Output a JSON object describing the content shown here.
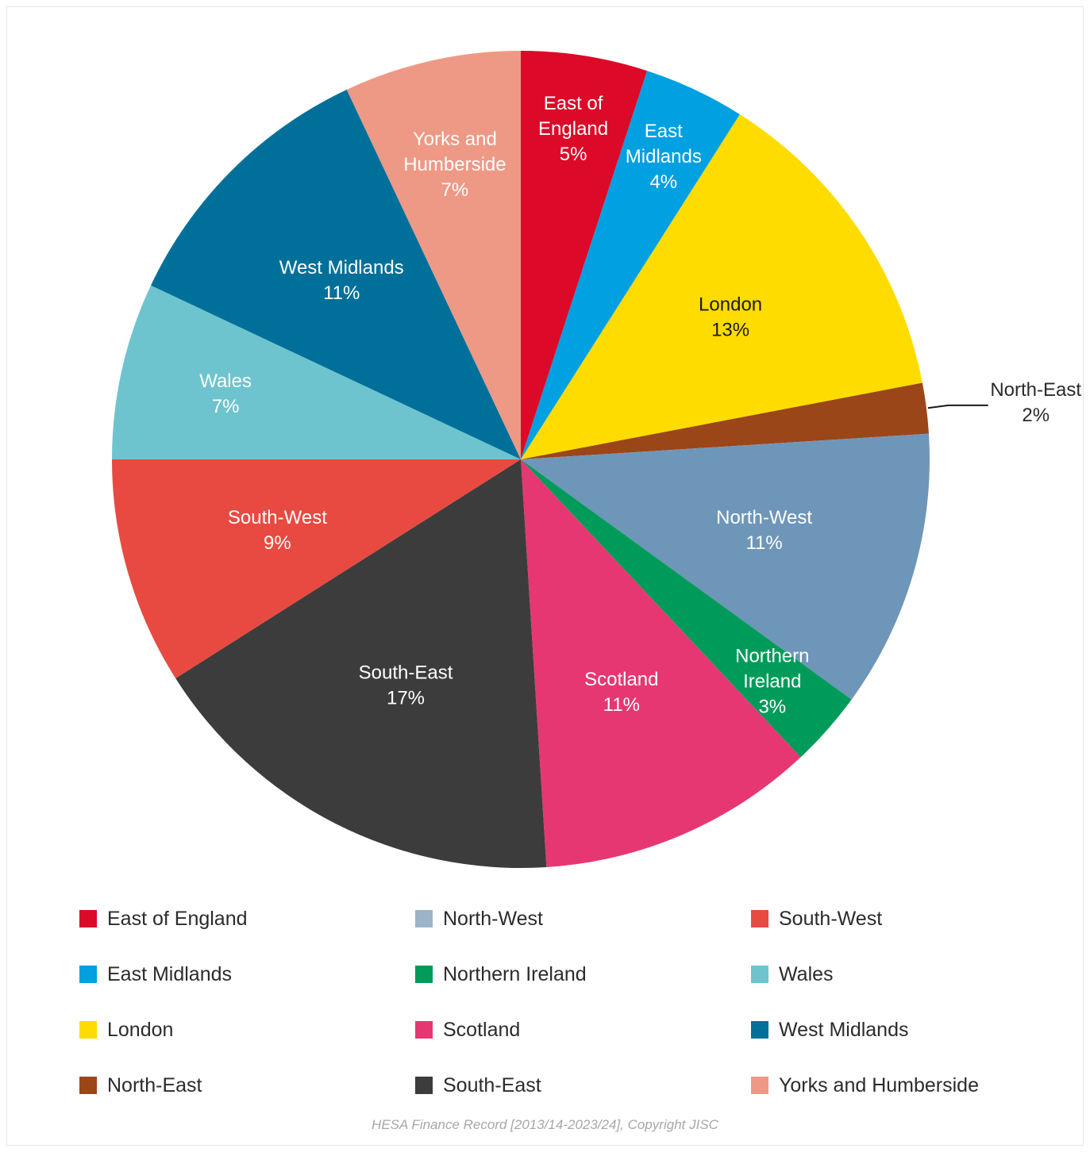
{
  "chart_data": {
    "type": "pie",
    "categories": [
      "East of England",
      "East Midlands",
      "London",
      "North-East",
      "North-West",
      "Northern Ireland",
      "Scotland",
      "South-East",
      "South-West",
      "Wales",
      "West Midlands",
      "Yorks and Humberside"
    ],
    "values": [
      5,
      4,
      13,
      2,
      11,
      3,
      11,
      17,
      9,
      7,
      11,
      7
    ],
    "colors": [
      "#dc0a28",
      "#00a0e1",
      "#ffdc00",
      "#9b4618",
      "#6e96b9",
      "#009b5a",
      "#e63773",
      "#3c3c3c",
      "#e84a41",
      "#6ec4ce",
      "#00709a",
      "#ee9985"
    ],
    "slices": [
      {
        "label": [
          "East of",
          "England",
          "5%"
        ],
        "value": 5,
        "color": "#dc0a28",
        "text_color": "#ffffff"
      },
      {
        "label": [
          "East",
          "Midlands",
          "4%"
        ],
        "value": 4,
        "color": "#00a0e1",
        "text_color": "#ffffff"
      },
      {
        "label": [
          "London",
          "13%"
        ],
        "value": 13,
        "color": "#ffdc00",
        "text_color": "#1a1a1a"
      },
      {
        "label": [
          "North-East",
          "2%"
        ],
        "value": 2,
        "color": "#9b4618",
        "text_color": "#2b2b2b"
      },
      {
        "label": [
          "North-West",
          "11%"
        ],
        "value": 11,
        "color": "#6e96b9",
        "text_color": "#ffffff"
      },
      {
        "label": [
          "Northern",
          "Ireland",
          "3%"
        ],
        "value": 3,
        "color": "#009b5a",
        "text_color": "#ffffff"
      },
      {
        "label": [
          "Scotland",
          "11%"
        ],
        "value": 11,
        "color": "#e63773",
        "text_color": "#ffffff"
      },
      {
        "label": [
          "South-East",
          "17%"
        ],
        "value": 17,
        "color": "#3c3c3c",
        "text_color": "#ffffff"
      },
      {
        "label": [
          "South-West",
          "9%"
        ],
        "value": 9,
        "color": "#e84a41",
        "text_color": "#ffffff"
      },
      {
        "label": [
          "Wales",
          "7%"
        ],
        "value": 7,
        "color": "#6ec4ce",
        "text_color": "#ffffff"
      },
      {
        "label": [
          "West Midlands",
          "11%"
        ],
        "value": 11,
        "color": "#00709a",
        "text_color": "#ffffff"
      },
      {
        "label": [
          "Yorks and",
          "Humberside",
          "7%"
        ],
        "value": 7,
        "color": "#ee9985",
        "text_color": "#ffffff"
      }
    ],
    "legend": [
      {
        "label": "East of England",
        "color": "#dc0a28"
      },
      {
        "label": "North-West",
        "color": "#9cb4c8"
      },
      {
        "label": "South-West",
        "color": "#e84a41"
      },
      {
        "label": "East Midlands",
        "color": "#00a0e1"
      },
      {
        "label": "Northern Ireland",
        "color": "#009b5a"
      },
      {
        "label": "Wales",
        "color": "#6ec4ce"
      },
      {
        "label": "London",
        "color": "#ffdc00"
      },
      {
        "label": "Scotland",
        "color": "#e63773"
      },
      {
        "label": "West Midlands",
        "color": "#00709a"
      },
      {
        "label": "North-East",
        "color": "#9b4618"
      },
      {
        "label": "South-East",
        "color": "#3c3c3c"
      },
      {
        "label": "Yorks and Humberside",
        "color": "#ee9985"
      }
    ],
    "legend_placement": "bottom",
    "source": "HESA Finance Record [2013/14-2023/24], Copyright JISC"
  }
}
